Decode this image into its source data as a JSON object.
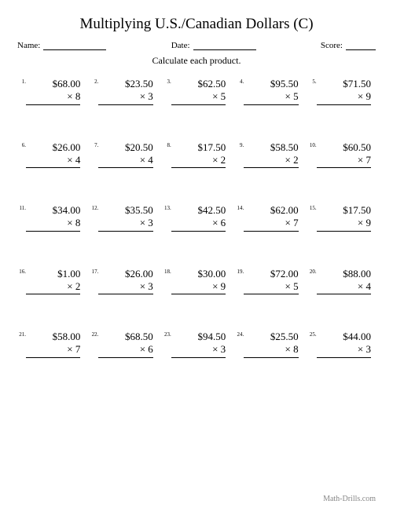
{
  "title": "Multiplying U.S./Canadian Dollars (C)",
  "labels": {
    "name": "Name:",
    "date": "Date:",
    "score": "Score:"
  },
  "instruction": "Calculate each product.",
  "footer": "Math-Drills.com",
  "problems": [
    {
      "n": "1.",
      "top": "$68.00",
      "bot": "× 8"
    },
    {
      "n": "2.",
      "top": "$23.50",
      "bot": "× 3"
    },
    {
      "n": "3.",
      "top": "$62.50",
      "bot": "× 5"
    },
    {
      "n": "4.",
      "top": "$95.50",
      "bot": "× 5"
    },
    {
      "n": "5.",
      "top": "$71.50",
      "bot": "× 9"
    },
    {
      "n": "6.",
      "top": "$26.00",
      "bot": "× 4"
    },
    {
      "n": "7.",
      "top": "$20.50",
      "bot": "× 4"
    },
    {
      "n": "8.",
      "top": "$17.50",
      "bot": "× 2"
    },
    {
      "n": "9.",
      "top": "$58.50",
      "bot": "× 2"
    },
    {
      "n": "10.",
      "top": "$60.50",
      "bot": "× 7"
    },
    {
      "n": "11.",
      "top": "$34.00",
      "bot": "× 8"
    },
    {
      "n": "12.",
      "top": "$35.50",
      "bot": "× 3"
    },
    {
      "n": "13.",
      "top": "$42.50",
      "bot": "× 6"
    },
    {
      "n": "14.",
      "top": "$62.00",
      "bot": "× 7"
    },
    {
      "n": "15.",
      "top": "$17.50",
      "bot": "× 9"
    },
    {
      "n": "16.",
      "top": "$1.00",
      "bot": "× 2"
    },
    {
      "n": "17.",
      "top": "$26.00",
      "bot": "× 3"
    },
    {
      "n": "18.",
      "top": "$30.00",
      "bot": "× 9"
    },
    {
      "n": "19.",
      "top": "$72.00",
      "bot": "× 5"
    },
    {
      "n": "20.",
      "top": "$88.00",
      "bot": "× 4"
    },
    {
      "n": "21.",
      "top": "$58.00",
      "bot": "× 7"
    },
    {
      "n": "22.",
      "top": "$68.50",
      "bot": "× 6"
    },
    {
      "n": "23.",
      "top": "$94.50",
      "bot": "× 3"
    },
    {
      "n": "24.",
      "top": "$25.50",
      "bot": "× 8"
    },
    {
      "n": "25.",
      "top": "$44.00",
      "bot": "× 3"
    }
  ],
  "style": {
    "background": "#ffffff",
    "text_color": "#000000",
    "footer_color": "#888888",
    "title_fontsize": 19,
    "body_fontsize": 13,
    "label_fontsize": 11,
    "pnum_fontsize": 7,
    "grid_cols": 5,
    "grid_rows": 5
  }
}
